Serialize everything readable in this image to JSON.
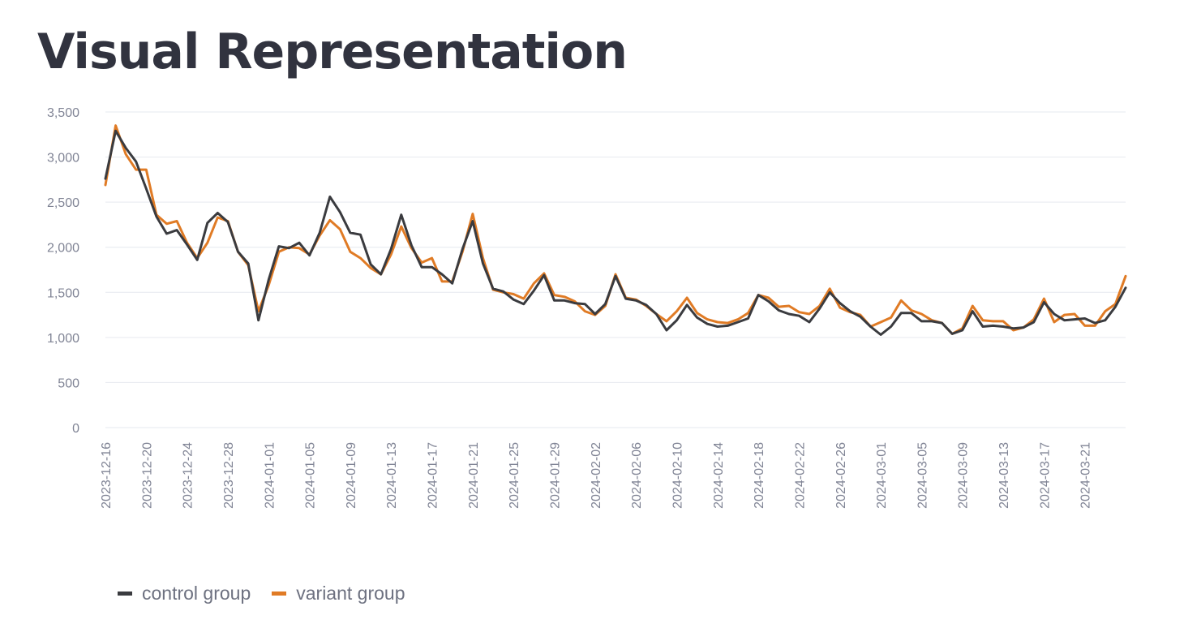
{
  "page": {
    "title": "Visual Representation"
  },
  "colors": {
    "control": "#3a3b3f",
    "variant": "#e07b25",
    "grid": "#e6e9ef"
  },
  "chart_data": {
    "type": "line",
    "title": "",
    "xlabel": "",
    "ylabel": "",
    "ylim": [
      0,
      3500
    ],
    "yticks": [
      0,
      500,
      1000,
      1500,
      2000,
      2500,
      3000,
      3500
    ],
    "ytick_labels": [
      "0",
      "500",
      "1,000",
      "1,500",
      "2,000",
      "2,500",
      "3,000",
      "3,500"
    ],
    "xlim": [
      "2023-12-16",
      "2024-03-25"
    ],
    "xtick_labels": [
      "2023-12-16",
      "2023-12-20",
      "2023-12-24",
      "2023-12-28",
      "2024-01-01",
      "2024-01-05",
      "2024-01-09",
      "2024-01-13",
      "2024-01-17",
      "2024-01-21",
      "2024-01-25",
      "2024-01-29",
      "2024-02-02",
      "2024-02-06",
      "2024-02-10",
      "2024-02-14",
      "2024-02-18",
      "2024-02-22",
      "2024-02-26",
      "2024-03-01",
      "2024-03-05",
      "2024-03-09",
      "2024-03-13",
      "2024-03-17",
      "2024-03-21"
    ],
    "legend_position": "bottom-left",
    "grid": true,
    "x": [
      "2023-12-16",
      "2023-12-17",
      "2023-12-18",
      "2023-12-19",
      "2023-12-20",
      "2023-12-21",
      "2023-12-22",
      "2023-12-23",
      "2023-12-24",
      "2023-12-25",
      "2023-12-26",
      "2023-12-27",
      "2023-12-28",
      "2023-12-29",
      "2023-12-30",
      "2023-12-31",
      "2024-01-01",
      "2024-01-02",
      "2024-01-03",
      "2024-01-04",
      "2024-01-05",
      "2024-01-06",
      "2024-01-07",
      "2024-01-08",
      "2024-01-09",
      "2024-01-10",
      "2024-01-11",
      "2024-01-12",
      "2024-01-13",
      "2024-01-14",
      "2024-01-15",
      "2024-01-16",
      "2024-01-17",
      "2024-01-18",
      "2024-01-19",
      "2024-01-20",
      "2024-01-21",
      "2024-01-22",
      "2024-01-23",
      "2024-01-24",
      "2024-01-25",
      "2024-01-26",
      "2024-01-27",
      "2024-01-28",
      "2024-01-29",
      "2024-01-30",
      "2024-01-31",
      "2024-02-01",
      "2024-02-02",
      "2024-02-03",
      "2024-02-04",
      "2024-02-05",
      "2024-02-06",
      "2024-02-07",
      "2024-02-08",
      "2024-02-09",
      "2024-02-10",
      "2024-02-11",
      "2024-02-12",
      "2024-02-13",
      "2024-02-14",
      "2024-02-15",
      "2024-02-16",
      "2024-02-17",
      "2024-02-18",
      "2024-02-19",
      "2024-02-20",
      "2024-02-21",
      "2024-02-22",
      "2024-02-23",
      "2024-02-24",
      "2024-02-25",
      "2024-02-26",
      "2024-02-27",
      "2024-02-28",
      "2024-02-29",
      "2024-03-01",
      "2024-03-02",
      "2024-03-03",
      "2024-03-04",
      "2024-03-05",
      "2024-03-06",
      "2024-03-07",
      "2024-03-08",
      "2024-03-09",
      "2024-03-10",
      "2024-03-11",
      "2024-03-12",
      "2024-03-13",
      "2024-03-14",
      "2024-03-15",
      "2024-03-16",
      "2024-03-17",
      "2024-03-18",
      "2024-03-19",
      "2024-03-20",
      "2024-03-21",
      "2024-03-22",
      "2024-03-23",
      "2024-03-24",
      "2024-03-25"
    ],
    "series": [
      {
        "name": "control group",
        "color": "#3a3b3f",
        "values": [
          2760,
          3290,
          3100,
          2950,
          2650,
          2340,
          2150,
          2190,
          2030,
          1860,
          2270,
          2380,
          2280,
          1950,
          1820,
          1190,
          1640,
          2010,
          1990,
          2050,
          1910,
          2160,
          2560,
          2390,
          2160,
          2140,
          1810,
          1700,
          1980,
          2360,
          2020,
          1780,
          1780,
          1700,
          1600,
          1980,
          2290,
          1820,
          1540,
          1510,
          1420,
          1370,
          1520,
          1690,
          1410,
          1410,
          1380,
          1370,
          1260,
          1370,
          1680,
          1430,
          1410,
          1360,
          1260,
          1080,
          1190,
          1360,
          1220,
          1150,
          1120,
          1130,
          1170,
          1210,
          1470,
          1400,
          1300,
          1260,
          1240,
          1170,
          1320,
          1500,
          1380,
          1290,
          1230,
          1120,
          1030,
          1120,
          1270,
          1270,
          1180,
          1180,
          1160,
          1040,
          1080,
          1290,
          1120,
          1130,
          1120,
          1100,
          1110,
          1170,
          1390,
          1260,
          1190,
          1200,
          1210,
          1160,
          1190,
          1340,
          1550
        ]
      },
      {
        "name": "variant group",
        "color": "#e07b25",
        "values": [
          2690,
          3350,
          3030,
          2860,
          2860,
          2360,
          2260,
          2290,
          2050,
          1880,
          2050,
          2330,
          2290,
          1950,
          1800,
          1290,
          1580,
          1950,
          2000,
          1990,
          1920,
          2130,
          2300,
          2200,
          1950,
          1880,
          1770,
          1700,
          1920,
          2230,
          1990,
          1830,
          1880,
          1620,
          1620,
          1950,
          2370,
          1880,
          1530,
          1500,
          1480,
          1430,
          1600,
          1710,
          1470,
          1450,
          1400,
          1290,
          1250,
          1350,
          1700,
          1440,
          1420,
          1350,
          1260,
          1180,
          1290,
          1440,
          1270,
          1200,
          1170,
          1160,
          1200,
          1270,
          1470,
          1440,
          1340,
          1350,
          1280,
          1260,
          1350,
          1540,
          1330,
          1280,
          1250,
          1120,
          1170,
          1220,
          1410,
          1300,
          1260,
          1190,
          1160,
          1040,
          1100,
          1350,
          1190,
          1180,
          1180,
          1080,
          1110,
          1200,
          1430,
          1170,
          1250,
          1260,
          1130,
          1130,
          1290,
          1370,
          1680
        ]
      }
    ]
  },
  "legend": {
    "items": [
      {
        "label": "control group",
        "color": "#3a3b3f"
      },
      {
        "label": "variant group",
        "color": "#e07b25"
      }
    ]
  }
}
